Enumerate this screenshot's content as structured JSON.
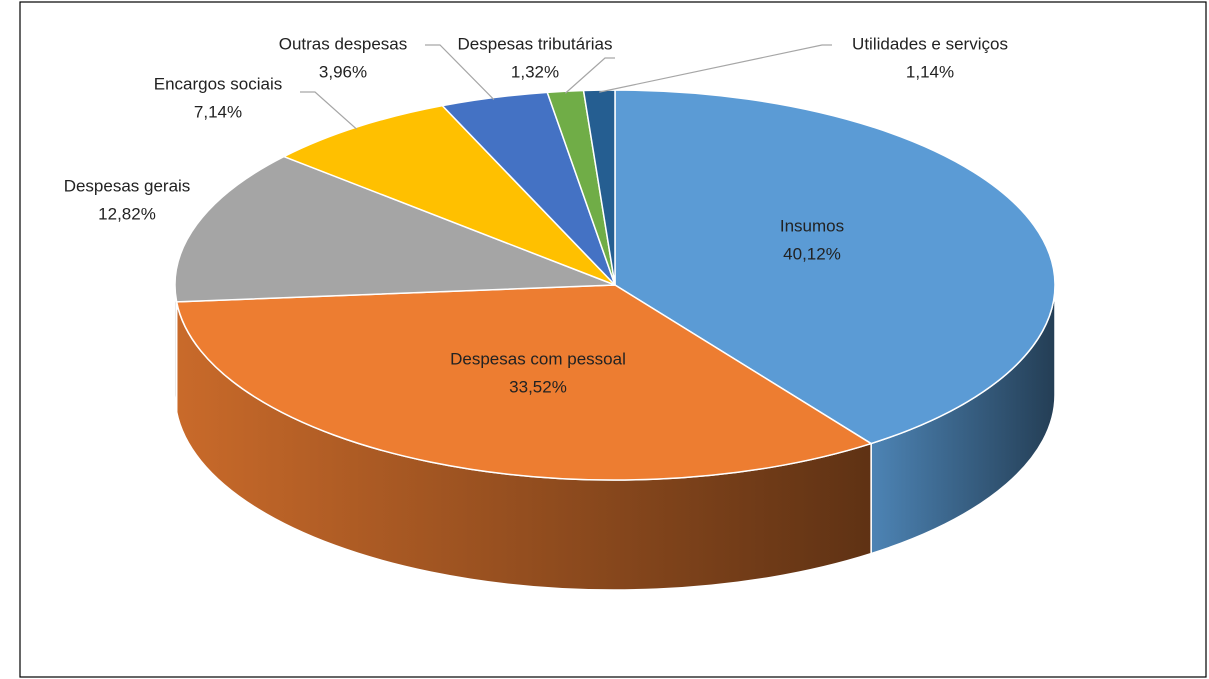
{
  "chart_data": {
    "type": "pie",
    "categories": [
      "Insumos",
      "Despesas com pessoal",
      "Despesas gerais",
      "Encargos sociais",
      "Outras despesas",
      "Despesas tributárias",
      "Utilidades e serviços"
    ],
    "values": [
      40.12,
      33.52,
      12.82,
      7.14,
      3.96,
      1.32,
      1.14
    ],
    "value_labels": [
      "40,12%",
      "33,52%",
      "12,82%",
      "7,14%",
      "3,96%",
      "1,32%",
      "1,14%"
    ],
    "colors": [
      "#5b9bd5",
      "#ed7d31",
      "#a5a5a5",
      "#ffc000",
      "#4472c4",
      "#70ad47",
      "#255e91"
    ]
  }
}
